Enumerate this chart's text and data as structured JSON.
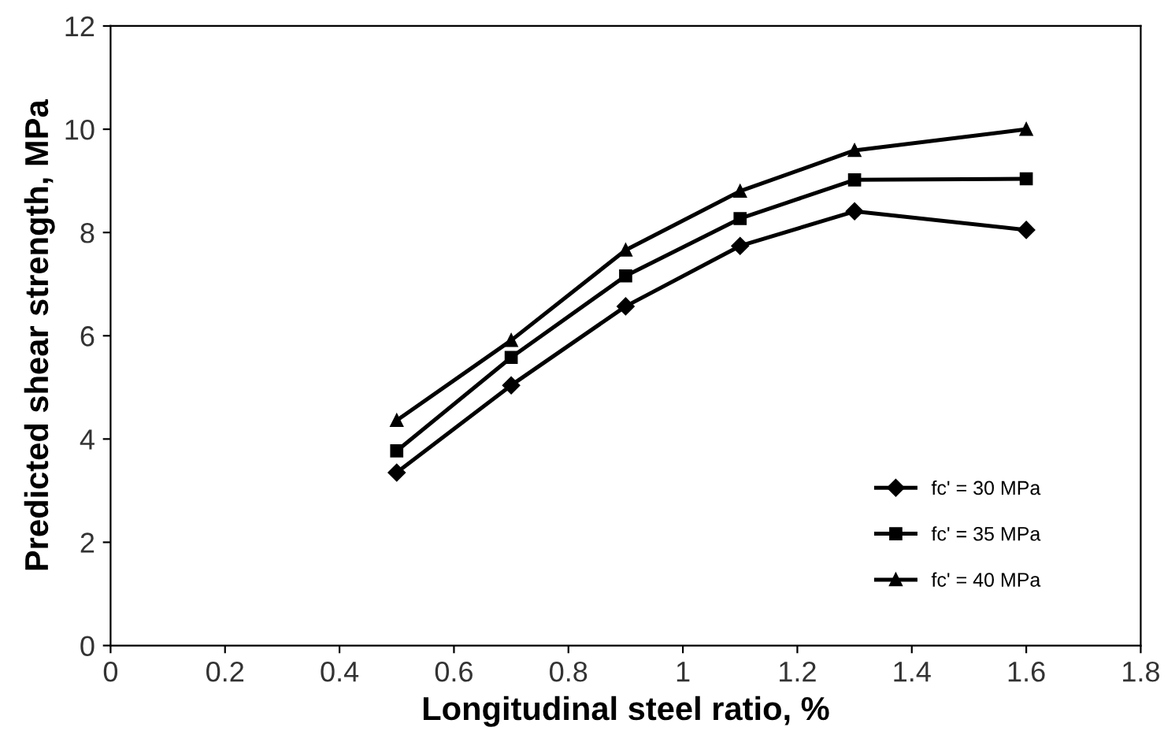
{
  "chart_data": {
    "type": "line",
    "xlabel": "Longitudinal steel ratio, %",
    "ylabel": "Predicted shear strength, MPa",
    "x": [
      0.5,
      0.7,
      0.9,
      1.1,
      1.3,
      1.6
    ],
    "series": [
      {
        "name": "fc' = 30 MPa",
        "color": "#000000",
        "marker": "diamond",
        "values": [
          3.35,
          5.04,
          6.57,
          7.74,
          8.41,
          8.05
        ]
      },
      {
        "name": "fc' = 35 MPa",
        "color": "#000000",
        "marker": "square",
        "values": [
          3.77,
          5.58,
          7.16,
          8.27,
          9.02,
          9.04
        ]
      },
      {
        "name": "fc' = 40 MPa",
        "color": "#000000",
        "marker": "triangle",
        "values": [
          4.36,
          5.91,
          7.66,
          8.8,
          9.59,
          10.0
        ]
      }
    ],
    "xlim": [
      0,
      1.8
    ],
    "xticks": [
      0,
      0.2,
      0.4,
      0.6,
      0.8,
      1,
      1.2,
      1.4,
      1.6,
      1.8
    ],
    "ylim": [
      0,
      12
    ],
    "yticks": [
      0,
      2,
      4,
      6,
      8,
      10,
      12
    ],
    "grid": false,
    "legend": "bottom right",
    "line_style": "solid"
  }
}
